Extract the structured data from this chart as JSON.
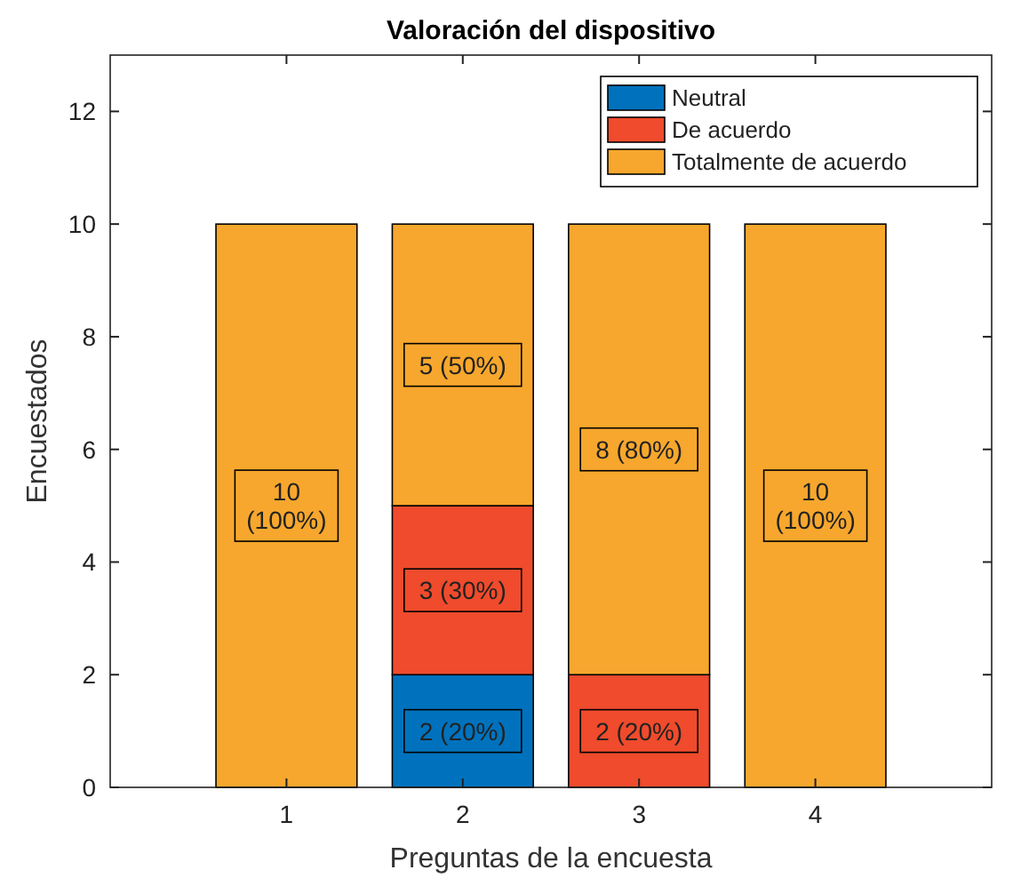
{
  "chart_data": {
    "type": "bar",
    "title": "Valoración del dispositivo",
    "xlabel": "Preguntas de la encuesta",
    "ylabel": "Encuestados",
    "categories": [
      "1",
      "2",
      "3",
      "4"
    ],
    "stacked": true,
    "ylim": [
      0,
      13
    ],
    "yticks": [
      0,
      2,
      4,
      6,
      8,
      10,
      12
    ],
    "legend": "top right",
    "series": [
      {
        "name": "Neutral",
        "color": "#0072bd",
        "values": [
          0,
          2,
          0,
          0
        ],
        "value_labels": [
          null,
          "2 (20%)",
          null,
          null
        ]
      },
      {
        "name": "De acuerdo",
        "color": "#ef4b2c",
        "values": [
          0,
          3,
          2,
          0
        ],
        "value_labels": [
          null,
          "3 (30%)",
          "2 (20%)",
          null
        ]
      },
      {
        "name": "Totalmente de acuerdo",
        "color": "#f7a72d",
        "values": [
          10,
          5,
          8,
          10
        ],
        "value_labels": [
          "10\n(100%)",
          "5 (50%)",
          "8 (80%)",
          "10\n(100%)"
        ]
      }
    ]
  }
}
